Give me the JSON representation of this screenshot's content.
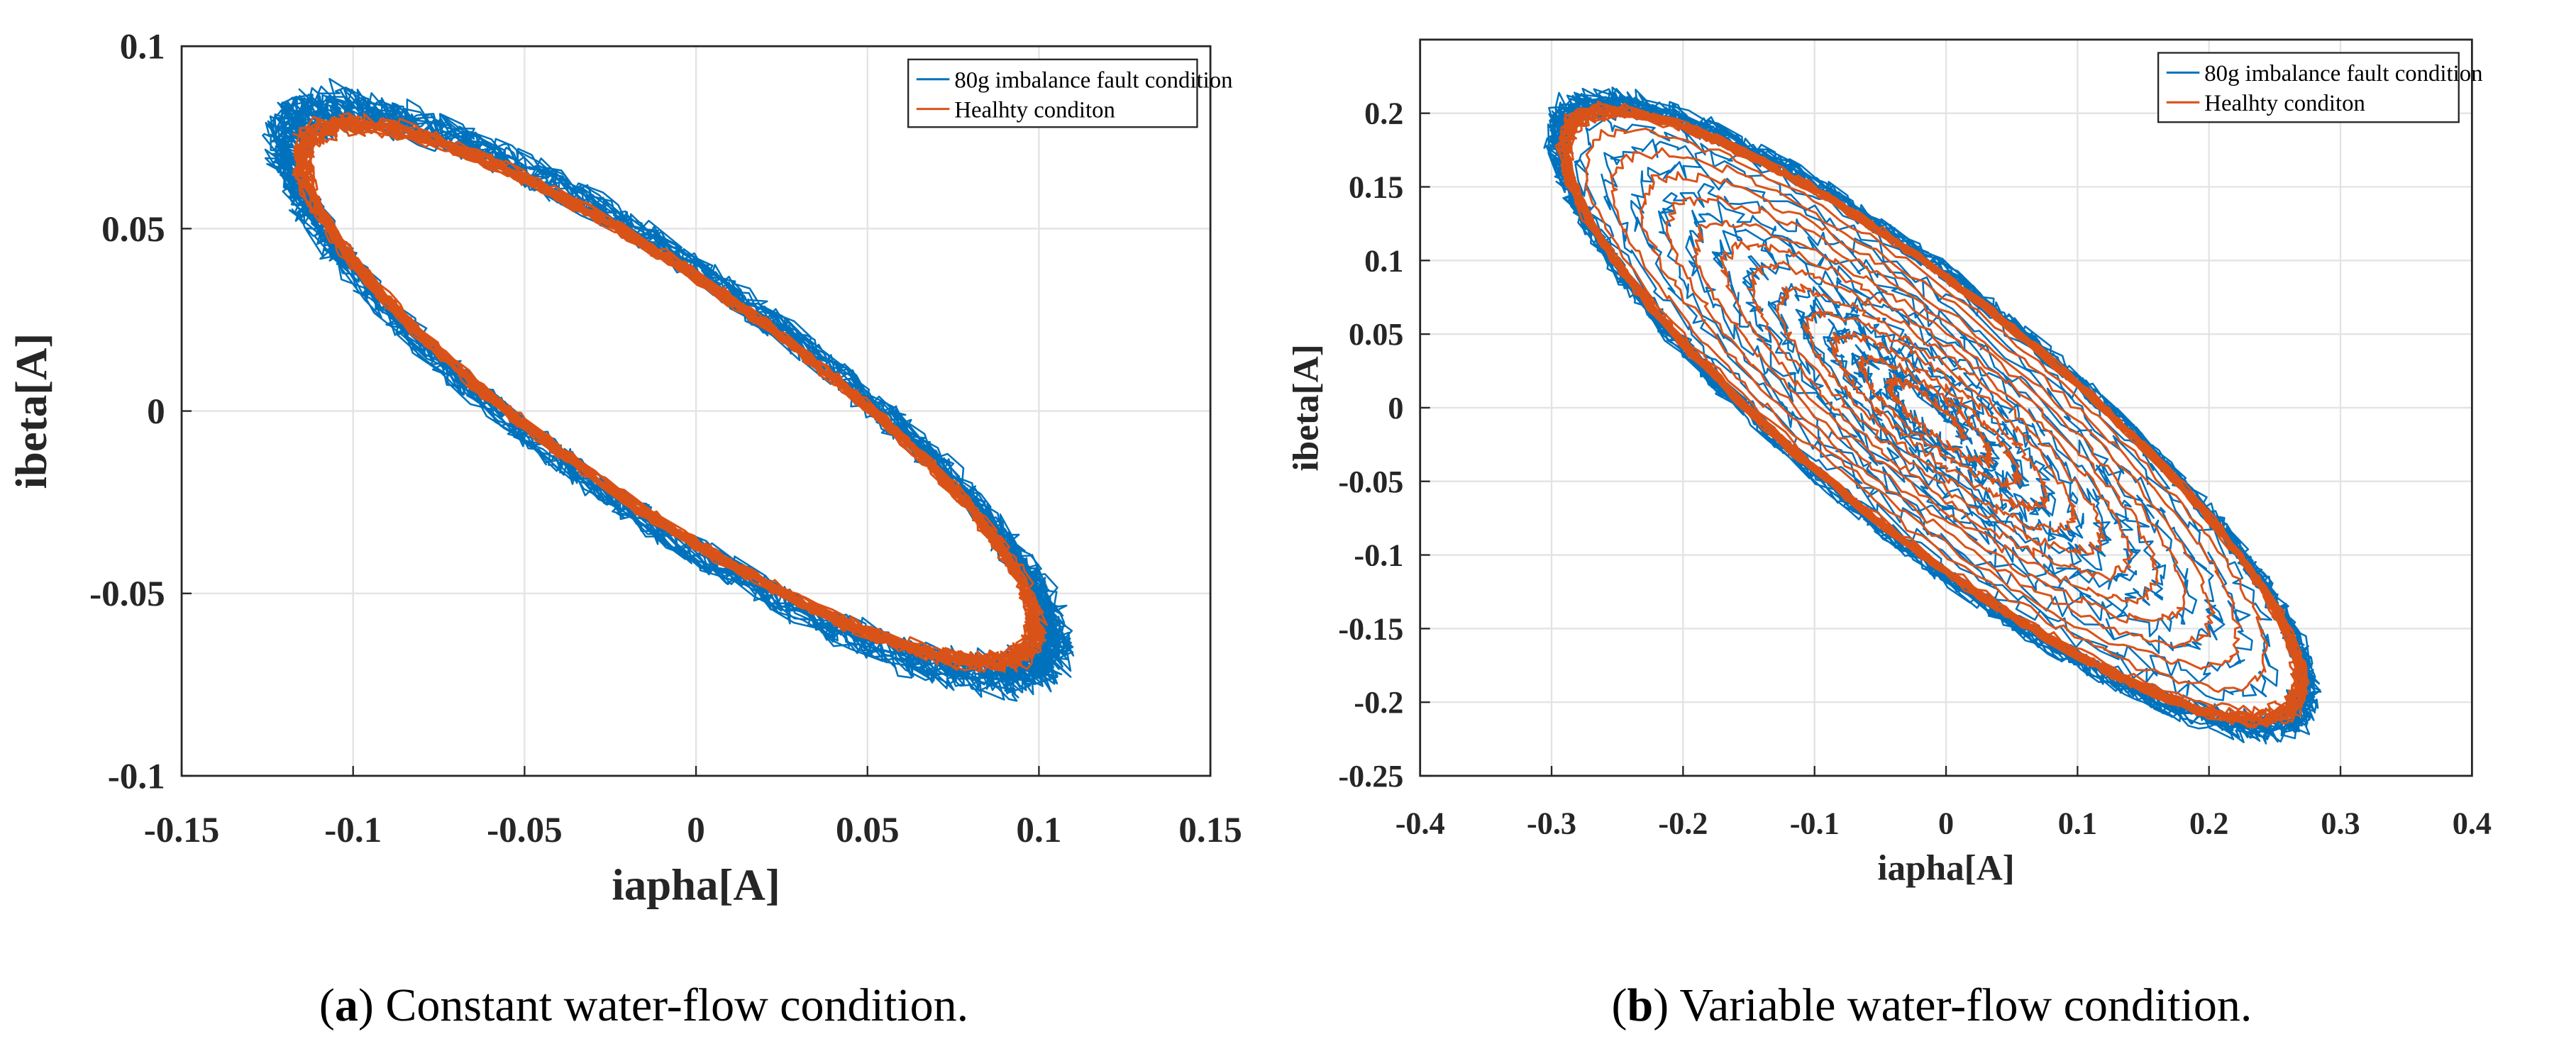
{
  "chart_data": [
    {
      "type": "line",
      "panel": "a",
      "caption_letter": "a",
      "caption_text": " Constant water-flow condition.",
      "xlabel": "iapha[A]",
      "ylabel": "ibeta[A]",
      "xlim": [
        -0.15,
        0.15
      ],
      "ylim": [
        -0.1,
        0.1
      ],
      "xticks": [
        -0.15,
        -0.1,
        -0.05,
        0,
        0.05,
        0.1,
        0.15
      ],
      "xtick_labels": [
        "-0.15",
        "-0.1",
        "-0.05",
        "0",
        "0.05",
        "0.1",
        "0.15"
      ],
      "yticks": [
        -0.1,
        -0.05,
        0,
        0.05,
        0.1
      ],
      "ytick_labels": [
        "-0.1",
        "-0.05",
        "0",
        "0.05",
        "0.1"
      ],
      "grid": true,
      "legend_position": "top-right",
      "series": [
        {
          "name": "80g imbalance fault condition",
          "color": "#0072BD",
          "shape": "ellipse",
          "center": [
            -0.008,
            0.005
          ],
          "semi_axis_extents": [
            0.112,
            0.071
          ],
          "cross_term": -0.075,
          "noise": 0.0045
        },
        {
          "name": "Healhty conditon",
          "color": "#D95319",
          "shape": "ellipse",
          "center": [
            -0.008,
            0.005
          ],
          "semi_axis_extents": [
            0.107,
            0.067
          ],
          "cross_term": -0.071,
          "noise": 0.0018
        }
      ]
    },
    {
      "type": "line",
      "panel": "b",
      "caption_letter": "b",
      "caption_text": " Variable water-flow condition.",
      "xlabel": "iapha[A]",
      "ylabel": "ibeta[A]",
      "xlim": [
        -0.4,
        0.4
      ],
      "ylim": [
        -0.25,
        0.25
      ],
      "xticks": [
        -0.4,
        -0.3,
        -0.2,
        -0.1,
        0,
        0.1,
        0.2,
        0.3,
        0.4
      ],
      "xtick_labels": [
        "-0.4",
        "-0.3",
        "-0.2",
        "-0.1",
        "0",
        "0.1",
        "0.2",
        "0.3",
        "0.4"
      ],
      "yticks": [
        -0.25,
        -0.2,
        -0.15,
        -0.1,
        -0.05,
        0,
        0.05,
        0.1,
        0.15,
        0.2
      ],
      "ytick_labels": [
        "-0.25",
        "-0.2",
        "-0.15",
        "-0.1",
        "-0.05",
        "0",
        "0.05",
        "0.1",
        "0.15",
        "0.2"
      ],
      "grid": true,
      "legend_position": "top-right",
      "series": [
        {
          "name": "80g imbalance fault condition",
          "color": "#0072BD",
          "shape": "spiral-ellipse",
          "center": [
            -0.01,
            -0.005
          ],
          "semi_axis_extents": [
            0.285,
            0.187
          ],
          "cross_term": -0.195,
          "noise": 0.007
        },
        {
          "name": "Healhty conditon",
          "color": "#D95319",
          "shape": "spiral-ellipse",
          "center": [
            -0.01,
            -0.005
          ],
          "semi_axis_extents": [
            0.28,
            0.182
          ],
          "cross_term": -0.19,
          "noise": 0.003
        }
      ]
    }
  ]
}
